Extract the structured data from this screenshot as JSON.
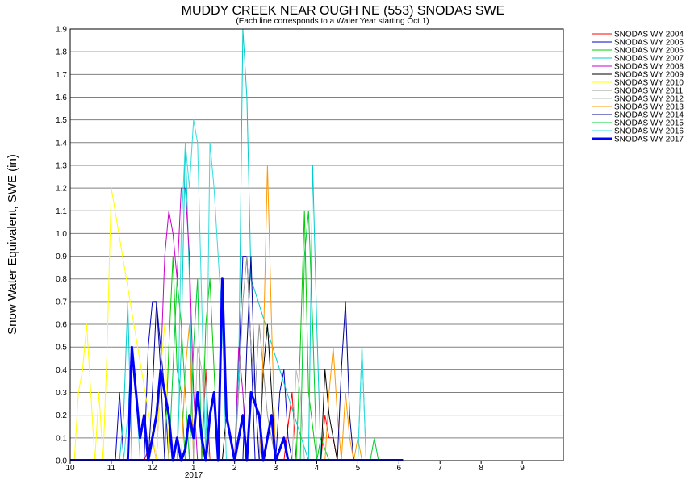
{
  "chart_data": {
    "type": "line",
    "title": "MUDDY CREEK NEAR OUGH NE (553) SNODAS SWE",
    "subtitle": "(Each line corresponds to a Water Year starting Oct 1)",
    "ylabel": "Snow Water Equivalent, SWE (in)",
    "xlabel": "",
    "x_ticks": [
      "10",
      "11",
      "12",
      "1",
      "2",
      "3",
      "4",
      "5",
      "6",
      "7",
      "8",
      "9"
    ],
    "x_sublabel": "2017",
    "ylim": [
      0,
      1.9
    ],
    "y_ticks": [
      "0.0",
      "0.1",
      "0.2",
      "0.3",
      "0.4",
      "0.5",
      "0.6",
      "0.7",
      "0.8",
      "0.9",
      "1.0",
      "1.1",
      "1.2",
      "1.3",
      "1.4",
      "1.5",
      "1.6",
      "1.7",
      "1.8",
      "1.9"
    ],
    "grid": true,
    "legend_position": "right",
    "series": [
      {
        "name": "SNODAS WY 2004",
        "color": "#ff0000",
        "width": 1,
        "x": [
          1.8,
          2.0,
          2.1,
          3.2,
          3.3,
          3.4,
          5.2,
          5.4,
          5.5,
          6.1,
          6.2,
          6.3,
          6.4,
          6.5
        ],
        "y": [
          0,
          0.1,
          0,
          0,
          0.4,
          0,
          0,
          0.3,
          0,
          0,
          0.2,
          0.1,
          0.1,
          0
        ]
      },
      {
        "name": "SNODAS WY 2005",
        "color": "#0000cc",
        "width": 1,
        "x": [
          1.1,
          1.2,
          1.3,
          1.8,
          1.9,
          2.0,
          2.1,
          2.2,
          2.3,
          2.4,
          4.0,
          4.1,
          4.2,
          4.3,
          4.4,
          4.5,
          5.0,
          5.1,
          5.2,
          5.3,
          5.4
        ],
        "y": [
          0,
          0.3,
          0,
          0,
          0.5,
          0.7,
          0.7,
          0.5,
          0.3,
          0,
          0,
          0.4,
          0.9,
          0.9,
          0.5,
          0,
          0,
          0.3,
          0.4,
          0.1,
          0
        ]
      },
      {
        "name": "SNODAS WY 2006",
        "color": "#00cc00",
        "width": 1,
        "x": [
          2.3,
          2.4,
          2.5,
          2.6,
          2.7,
          2.8,
          3.2,
          3.3,
          3.4,
          3.5,
          3.6,
          5.5,
          5.6,
          5.7,
          5.8,
          6.0,
          6.1,
          6.2,
          6.3
        ],
        "y": [
          0,
          0.5,
          0.9,
          0.4,
          0.3,
          0,
          0,
          0.6,
          0.8,
          0.4,
          0,
          0,
          0.5,
          1.1,
          0.3,
          0,
          0.1,
          0.05,
          0
        ]
      },
      {
        "name": "SNODAS WY 2007",
        "color": "#00cccc",
        "width": 1,
        "x": [
          1.2,
          1.3,
          1.4,
          1.5,
          2.6,
          2.7,
          2.8,
          2.9,
          3.0,
          4.0,
          4.1,
          4.2,
          4.3,
          4.4,
          5.8,
          5.9,
          6.0,
          6.1,
          7.0,
          7.1,
          7.2
        ],
        "y": [
          0,
          0.2,
          0.7,
          0,
          0,
          0.5,
          1.4,
          0.8,
          0,
          0,
          0.4,
          1.9,
          1.6,
          0.8,
          0,
          1.3,
          0.6,
          0,
          0,
          0.5,
          0
        ]
      },
      {
        "name": "SNODAS WY 2008",
        "color": "#cc00cc",
        "width": 1,
        "x": [
          2.1,
          2.2,
          2.3,
          2.4,
          2.5,
          2.6,
          2.7,
          2.8,
          2.9,
          3.0,
          3.1,
          3.2,
          4.0,
          4.1,
          4.2,
          4.3
        ],
        "y": [
          0,
          0.4,
          0.9,
          1.1,
          1.0,
          0.8,
          1.2,
          1.2,
          0.9,
          0.3,
          0,
          0,
          0,
          0.5,
          0.3,
          0
        ]
      },
      {
        "name": "SNODAS WY 2009",
        "color": "#000000",
        "width": 1,
        "x": [
          3.7,
          3.8,
          3.9,
          4.0,
          4.6,
          4.7,
          4.8,
          4.9,
          5.0,
          5.1,
          6.1,
          6.2,
          6.3,
          6.4,
          6.5
        ],
        "y": [
          0,
          0.2,
          0.1,
          0,
          0,
          0.4,
          0.6,
          0.3,
          0,
          0,
          0,
          0.4,
          0.2,
          0.1,
          0
        ]
      },
      {
        "name": "SNODAS WY 2010",
        "color": "#ffff00",
        "width": 1,
        "x": [
          0.1,
          0.2,
          0.3,
          0.4,
          0.5,
          0.6,
          0.7,
          0.8,
          0.9,
          1.0,
          2.1,
          2.2,
          2.3,
          2.4
        ],
        "y": [
          0,
          0.3,
          0.4,
          0.6,
          0.3,
          0,
          0.3,
          0,
          0.5,
          1.2,
          0,
          0.4,
          0.6,
          0
        ]
      },
      {
        "name": "SNODAS WY 2011",
        "color": "#999999",
        "width": 1,
        "x": [
          4.0,
          4.1,
          4.2,
          4.3,
          4.4,
          4.5,
          4.6,
          4.7,
          4.8,
          4.9,
          5.0
        ],
        "y": [
          0,
          0.3,
          0.7,
          0.9,
          0.5,
          0.3,
          0.6,
          0.4,
          0.2,
          0.1,
          0
        ]
      },
      {
        "name": "SNODAS WY 2012",
        "color": "#bbbbbb",
        "width": 1,
        "x": [
          3.0,
          3.1,
          3.2,
          3.3,
          3.4,
          5.4,
          5.5,
          5.6,
          5.7
        ],
        "y": [
          0,
          0.5,
          0.4,
          0.1,
          0,
          0,
          0.4,
          0.3,
          0
        ]
      },
      {
        "name": "SNODAS WY 2013",
        "color": "#ff9900",
        "width": 1,
        "x": [
          2.7,
          2.8,
          2.9,
          3.0,
          4.6,
          4.7,
          4.8,
          4.9,
          5.0,
          6.2,
          6.3,
          6.4,
          6.5,
          6.6,
          6.7,
          6.8,
          6.9,
          7.0,
          7.1
        ],
        "y": [
          0,
          0.4,
          0.6,
          0,
          0,
          0.5,
          1.3,
          0.6,
          0,
          0,
          0.3,
          0.5,
          0.2,
          0,
          0.3,
          0.1,
          0,
          0.1,
          0
        ]
      },
      {
        "name": "SNODAS WY 2014",
        "color": "#000099",
        "width": 1,
        "x": [
          1.9,
          2.0,
          2.1,
          2.2,
          2.3,
          4.2,
          4.3,
          4.4,
          4.5,
          4.6,
          6.5,
          6.6,
          6.7,
          6.8,
          6.9
        ],
        "y": [
          0,
          0.3,
          0.7,
          0.4,
          0,
          0,
          0.5,
          0.9,
          0.3,
          0,
          0,
          0.4,
          0.7,
          0.2,
          0
        ]
      },
      {
        "name": "SNODAS WY 2015",
        "color": "#00cc33",
        "width": 1,
        "x": [
          2.4,
          2.5,
          2.6,
          2.7,
          2.8,
          2.9,
          3.0,
          3.1,
          3.2,
          5.6,
          5.7,
          5.8,
          5.9,
          6.0,
          7.3,
          7.4,
          7.5
        ],
        "y": [
          0,
          0.4,
          0.8,
          0.6,
          0.3,
          0,
          0.5,
          0.8,
          0,
          0,
          0.9,
          1.1,
          0.6,
          0,
          0,
          0.1,
          0
        ]
      },
      {
        "name": "SNODAS WY 2016",
        "color": "#33dddd",
        "width": 1,
        "x": [
          1.3,
          1.4,
          1.5,
          1.6,
          1.7,
          2.6,
          2.7,
          2.8,
          2.9,
          3.0,
          3.1,
          3.3,
          3.4,
          3.5,
          3.6,
          3.7,
          3.8,
          7.0,
          7.1,
          7.2
        ],
        "y": [
          0,
          0.2,
          0.5,
          0.3,
          0,
          0,
          1.0,
          1.4,
          1.2,
          1.5,
          1.4,
          0,
          1.4,
          1.2,
          0.9,
          0.6,
          0,
          0,
          0.5,
          0
        ]
      },
      {
        "name": "SNODAS WY 2017",
        "color": "#0000ff",
        "width": 3,
        "x": [
          1.4,
          1.5,
          1.6,
          1.7,
          1.8,
          1.9,
          2.0,
          2.1,
          2.2,
          2.3,
          2.4,
          2.5,
          2.6,
          2.7,
          2.8,
          2.9,
          3.0,
          3.1,
          3.2,
          3.3,
          3.4,
          3.5,
          3.6,
          3.7,
          3.8,
          3.9,
          4.0,
          4.1,
          4.2,
          4.3,
          4.4,
          4.5,
          4.6,
          4.7,
          4.8,
          4.9,
          5.0,
          5.1,
          5.2,
          5.3
        ],
        "y": [
          0,
          0.5,
          0.3,
          0.1,
          0.2,
          0,
          0.1,
          0.2,
          0.4,
          0.3,
          0.2,
          0,
          0.1,
          0,
          0.05,
          0.2,
          0.1,
          0.3,
          0.1,
          0,
          0.2,
          0.3,
          0,
          0.8,
          0.2,
          0.1,
          0,
          0.1,
          0.2,
          0,
          0.3,
          0.25,
          0.2,
          0,
          0.1,
          0.2,
          0,
          0.05,
          0.1,
          0
        ]
      }
    ]
  }
}
